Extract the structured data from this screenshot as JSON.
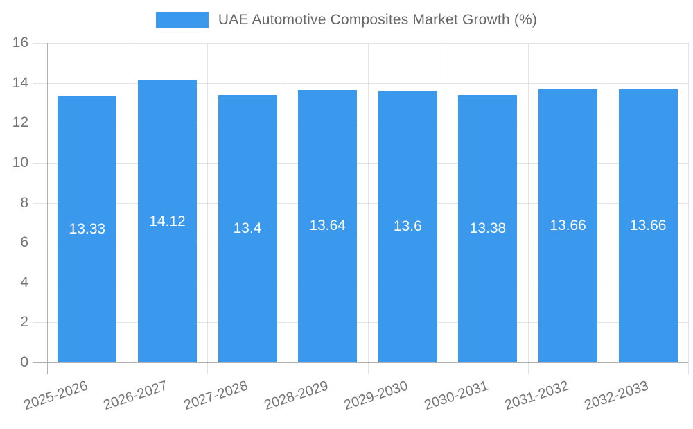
{
  "chart_data": {
    "type": "bar",
    "title": "UAE Automotive Composites Market Growth (%)",
    "legend_label": "UAE Automotive Composites Market Growth (%)",
    "categories": [
      "2025-2026",
      "2026-2027",
      "2027-2028",
      "2028-2029",
      "2029-2030",
      "2030-2031",
      "2031-2032",
      "2032-2033"
    ],
    "values": [
      13.33,
      14.12,
      13.4,
      13.64,
      13.6,
      13.38,
      13.66,
      13.66
    ],
    "data_labels": [
      "13.33",
      "14.12",
      "13.4",
      "13.64",
      "13.6",
      "13.38",
      "13.66",
      "13.66"
    ],
    "y_ticks": [
      "0",
      "2",
      "4",
      "6",
      "8",
      "10",
      "12",
      "14",
      "16"
    ],
    "ylim": [
      0,
      16
    ],
    "ytick_step": 2,
    "xlabel": "",
    "ylabel": "",
    "grid": "on",
    "legend_position": "top-center",
    "colors": {
      "bar": "#3b99ed",
      "grid": "#e3e3e3",
      "axis": "#b0b0b0",
      "tick_text": "#757575",
      "legend_text": "#666666",
      "bar_label_text": "#ffffff",
      "background": "#ffffff"
    }
  }
}
